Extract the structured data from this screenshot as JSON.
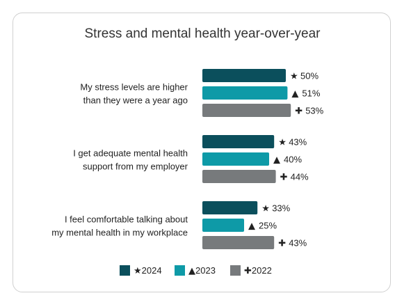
{
  "chart_data": {
    "type": "bar",
    "orientation": "horizontal",
    "title": "Stress and mental health year-over-year",
    "categories": [
      [
        "My stress levels are higher",
        "than they were a year ago"
      ],
      [
        "I get adequate mental health",
        "support from my employer"
      ],
      [
        "I feel comfortable talking about",
        "my mental health in my workplace"
      ]
    ],
    "series": [
      {
        "name": "2024",
        "symbol": "★",
        "color": "#0b4f5c",
        "values": [
          50,
          43,
          33
        ],
        "labels": [
          "50%",
          "43%",
          "33%"
        ]
      },
      {
        "name": "2023",
        "symbol": "▲",
        "color": "#0e9aa7",
        "values": [
          51,
          40,
          25
        ],
        "labels": [
          "51%",
          "40%",
          "25%"
        ]
      },
      {
        "name": "2022",
        "symbol": "✚",
        "color": "#777a7c",
        "values": [
          53,
          44,
          43
        ],
        "labels": [
          "53%",
          "44%",
          "43%"
        ]
      }
    ],
    "legend": "bottom",
    "grid": false
  }
}
